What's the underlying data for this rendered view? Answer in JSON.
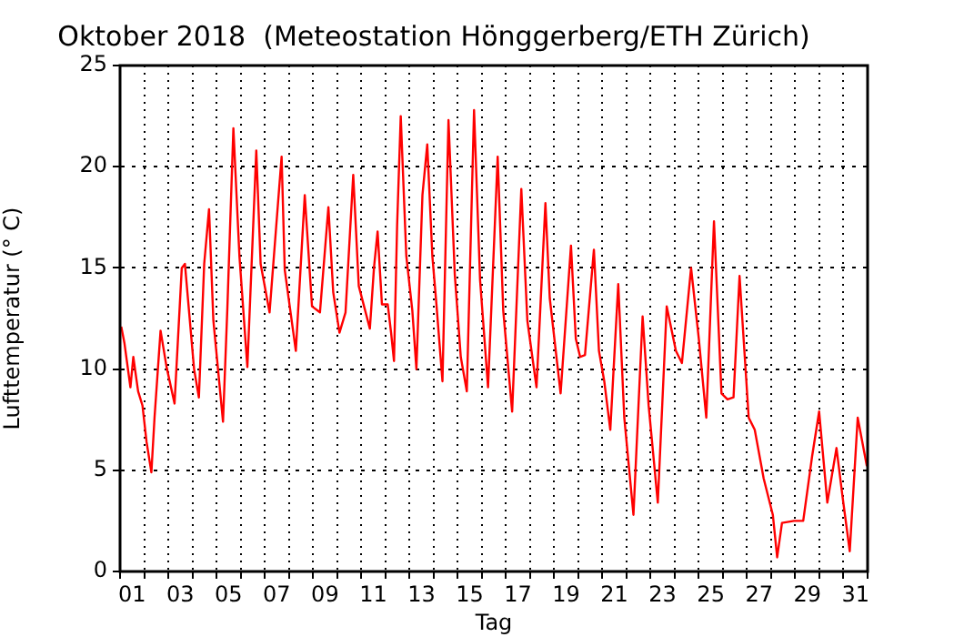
{
  "chart_data": {
    "type": "line",
    "title": "Oktober 2018  (Meteostation Hönggerberg/ETH Zürich)",
    "xlabel": "Tag",
    "ylabel": "Lufttemperatur (° C)",
    "xlim": [
      1,
      32
    ],
    "ylim": [
      0,
      25
    ],
    "yticks": [
      0,
      5,
      10,
      15,
      20,
      25
    ],
    "xticks": [
      {
        "value": 1,
        "label": null
      },
      {
        "value": 1.5,
        "label": "01"
      },
      {
        "value": 2,
        "label": null
      },
      {
        "value": 3,
        "label": null
      },
      {
        "value": 3.5,
        "label": "03"
      },
      {
        "value": 4,
        "label": null
      },
      {
        "value": 5,
        "label": null
      },
      {
        "value": 5.5,
        "label": "05"
      },
      {
        "value": 6,
        "label": null
      },
      {
        "value": 7,
        "label": null
      },
      {
        "value": 7.5,
        "label": "07"
      },
      {
        "value": 8,
        "label": null
      },
      {
        "value": 9,
        "label": null
      },
      {
        "value": 9.5,
        "label": "09"
      },
      {
        "value": 10,
        "label": null
      },
      {
        "value": 11,
        "label": null
      },
      {
        "value": 11.5,
        "label": "11"
      },
      {
        "value": 12,
        "label": null
      },
      {
        "value": 13,
        "label": null
      },
      {
        "value": 13.5,
        "label": "13"
      },
      {
        "value": 14,
        "label": null
      },
      {
        "value": 15,
        "label": null
      },
      {
        "value": 15.5,
        "label": "15"
      },
      {
        "value": 16,
        "label": null
      },
      {
        "value": 17,
        "label": null
      },
      {
        "value": 17.5,
        "label": "17"
      },
      {
        "value": 18,
        "label": null
      },
      {
        "value": 19,
        "label": null
      },
      {
        "value": 19.5,
        "label": "19"
      },
      {
        "value": 20,
        "label": null
      },
      {
        "value": 21,
        "label": null
      },
      {
        "value": 21.5,
        "label": "21"
      },
      {
        "value": 22,
        "label": null
      },
      {
        "value": 23,
        "label": null
      },
      {
        "value": 23.5,
        "label": "23"
      },
      {
        "value": 24,
        "label": null
      },
      {
        "value": 25,
        "label": null
      },
      {
        "value": 25.5,
        "label": "25"
      },
      {
        "value": 26,
        "label": null
      },
      {
        "value": 27,
        "label": null
      },
      {
        "value": 27.5,
        "label": "27"
      },
      {
        "value": 28,
        "label": null
      },
      {
        "value": 29,
        "label": null
      },
      {
        "value": 29.5,
        "label": "29"
      },
      {
        "value": 30,
        "label": null
      },
      {
        "value": 31,
        "label": null
      },
      {
        "value": 31.5,
        "label": "31"
      },
      {
        "value": 32,
        "label": null
      }
    ],
    "grid": true,
    "legend": false,
    "marker": "none",
    "line_style": "solid",
    "series": [
      {
        "color": "#ff0000",
        "x": [
          1.05,
          1.18,
          1.43,
          1.55,
          1.75,
          1.93,
          2.1,
          2.3,
          2.43,
          2.68,
          2.93,
          3.26,
          3.56,
          3.69,
          4.07,
          4.27,
          4.49,
          4.69,
          4.87,
          5.27,
          5.45,
          5.7,
          5.95,
          6.28,
          6.65,
          6.83,
          7.2,
          7.7,
          7.83,
          8.29,
          8.66,
          8.96,
          9.29,
          9.64,
          9.84,
          10.1,
          10.35,
          10.67,
          10.9,
          11.36,
          11.53,
          11.68,
          11.86,
          12.1,
          12.24,
          12.36,
          12.49,
          12.64,
          12.87,
          13.12,
          13.29,
          13.54,
          13.74,
          13.95,
          14.12,
          14.37,
          14.62,
          14.88,
          15.13,
          15.38,
          15.68,
          15.93,
          16.26,
          16.66,
          16.89,
          17.26,
          17.64,
          17.89,
          18.27,
          18.64,
          18.82,
          19.27,
          19.7,
          19.9,
          20.08,
          20.28,
          20.65,
          20.86,
          21.08,
          21.33,
          21.66,
          21.91,
          22.29,
          22.67,
          22.92,
          23.3,
          23.67,
          24.05,
          24.3,
          24.68,
          25.0,
          25.31,
          25.63,
          25.94,
          26.19,
          26.44,
          26.69,
          27.07,
          27.32,
          27.69,
          28.07,
          28.25,
          28.45,
          28.95,
          29.33,
          29.7,
          29.99,
          30.33,
          30.71,
          30.96,
          31.26,
          31.59,
          31.97
        ],
        "values": [
          12.1,
          11.3,
          9.1,
          10.6,
          8.9,
          8.2,
          6.4,
          4.9,
          7.6,
          11.9,
          10.1,
          8.3,
          15.0,
          15.2,
          10.0,
          8.6,
          15.2,
          17.9,
          12.4,
          7.4,
          13.0,
          21.9,
          15.6,
          10.1,
          20.8,
          15.2,
          12.8,
          20.5,
          14.9,
          10.9,
          18.6,
          13.1,
          12.8,
          18.0,
          13.8,
          11.8,
          12.8,
          19.6,
          14.1,
          12.0,
          15.0,
          16.8,
          13.2,
          13.2,
          11.8,
          10.4,
          17.1,
          22.5,
          15.6,
          12.9,
          10.0,
          18.6,
          21.1,
          15.6,
          13.2,
          9.4,
          22.3,
          14.7,
          10.6,
          8.9,
          22.8,
          14.4,
          9.1,
          20.5,
          12.9,
          7.9,
          18.9,
          12.4,
          9.1,
          18.2,
          13.5,
          8.8,
          16.1,
          11.5,
          10.6,
          10.7,
          15.9,
          10.9,
          9.4,
          7.0,
          14.2,
          7.6,
          2.8,
          12.6,
          8.2,
          3.4,
          13.1,
          10.9,
          10.3,
          15.0,
          11.5,
          7.6,
          17.3,
          8.8,
          8.5,
          8.6,
          14.6,
          7.6,
          7.0,
          4.6,
          2.8,
          0.7,
          2.4,
          2.5,
          2.5,
          5.7,
          7.9,
          3.4,
          6.1,
          3.7,
          1.0,
          7.6,
          5.2
        ]
      }
    ]
  }
}
